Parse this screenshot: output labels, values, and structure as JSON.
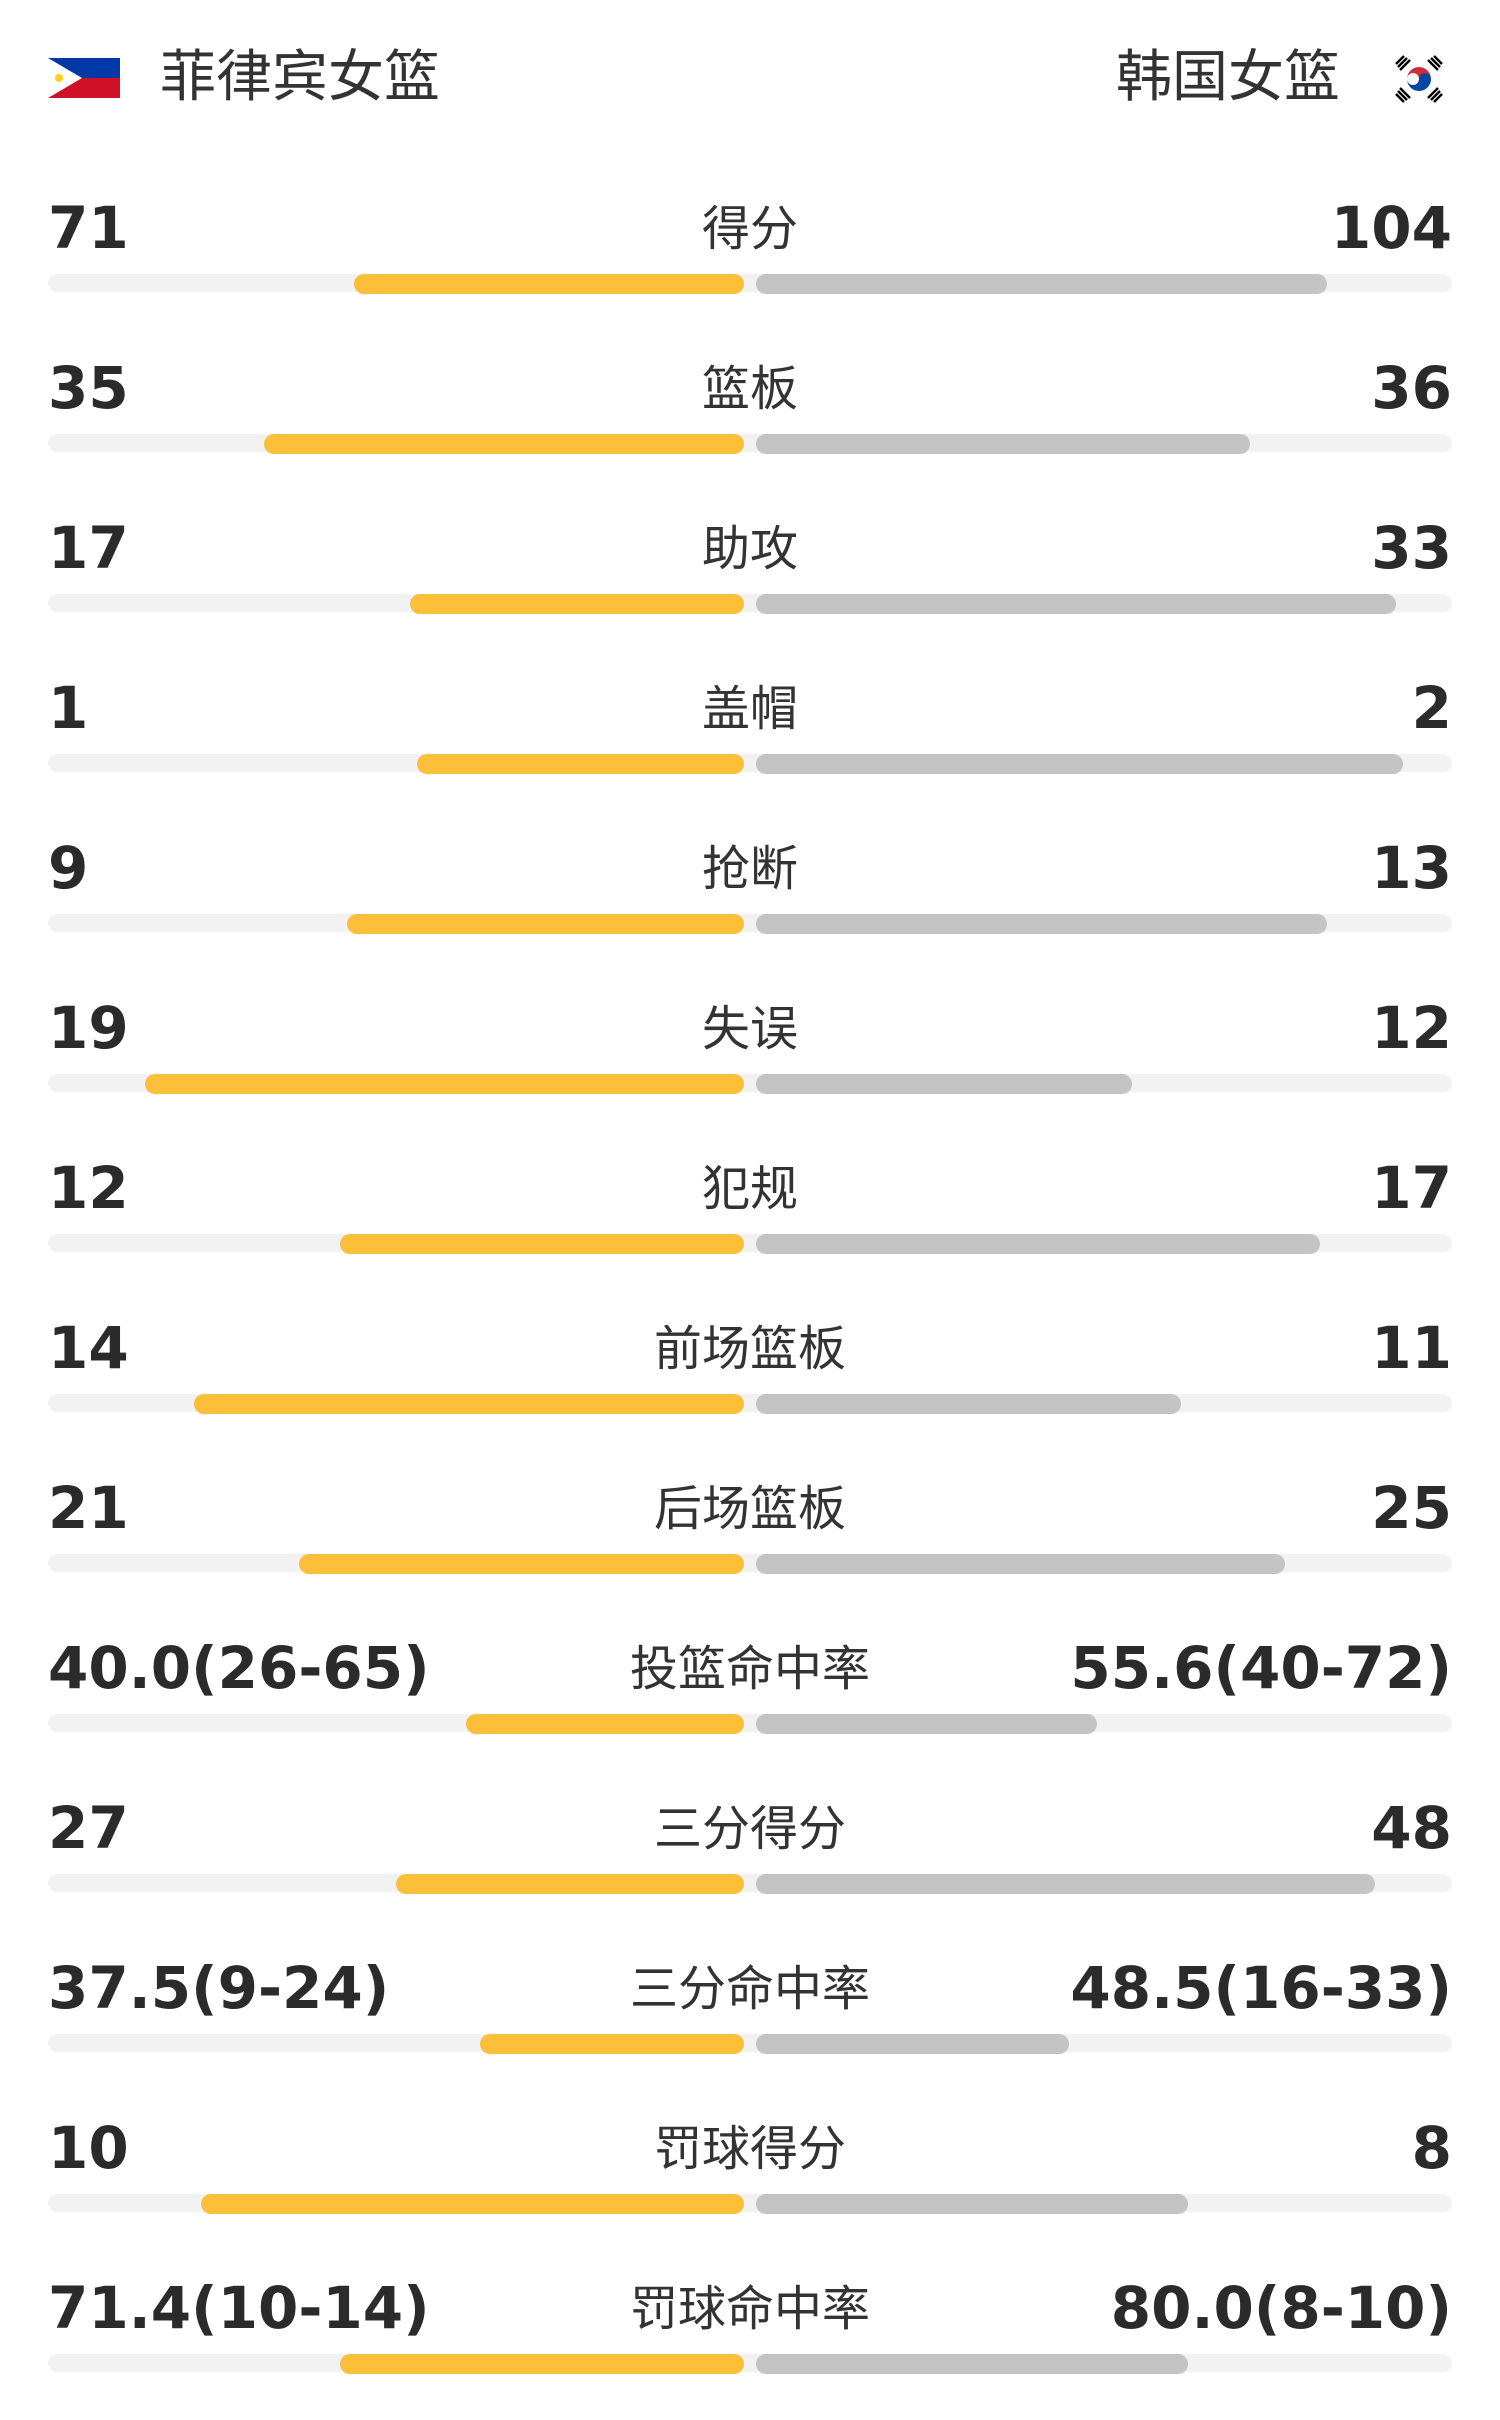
{
  "teams": {
    "home": {
      "name": "菲律宾女篮",
      "flag_icon": "philippines-flag-icon"
    },
    "away": {
      "name": "韩国女篮",
      "flag_icon": "south-korea-flag-icon"
    }
  },
  "colors": {
    "home_bar": "#fbbf3a",
    "away_bar": "#c4c4c4",
    "track": "#f2f2f2"
  },
  "stats": [
    {
      "label": "得分",
      "home": "71",
      "away": "104",
      "home_ratio": 0.56,
      "away_ratio": 0.82
    },
    {
      "label": "篮板",
      "home": "35",
      "away": "36",
      "home_ratio": 0.69,
      "away_ratio": 0.71
    },
    {
      "label": "助攻",
      "home": "17",
      "away": "33",
      "home_ratio": 0.48,
      "away_ratio": 0.92
    },
    {
      "label": "盖帽",
      "home": "1",
      "away": "2",
      "home_ratio": 0.47,
      "away_ratio": 0.93
    },
    {
      "label": "抢断",
      "home": "9",
      "away": "13",
      "home_ratio": 0.57,
      "away_ratio": 0.82
    },
    {
      "label": "失误",
      "home": "19",
      "away": "12",
      "home_ratio": 0.86,
      "away_ratio": 0.54
    },
    {
      "label": "犯规",
      "home": "12",
      "away": "17",
      "home_ratio": 0.58,
      "away_ratio": 0.81
    },
    {
      "label": "前场篮板",
      "home": "14",
      "away": "11",
      "home_ratio": 0.79,
      "away_ratio": 0.61
    },
    {
      "label": "后场篮板",
      "home": "21",
      "away": "25",
      "home_ratio": 0.64,
      "away_ratio": 0.76
    },
    {
      "label": "投篮命中率",
      "home": "40.0(26-65)",
      "away": "55.6(40-72)",
      "home_ratio": 0.4,
      "away_ratio": 0.49
    },
    {
      "label": "三分得分",
      "home": "27",
      "away": "48",
      "home_ratio": 0.5,
      "away_ratio": 0.89
    },
    {
      "label": "三分命中率",
      "home": "37.5(9-24)",
      "away": "48.5(16-33)",
      "home_ratio": 0.38,
      "away_ratio": 0.45
    },
    {
      "label": "罚球得分",
      "home": "10",
      "away": "8",
      "home_ratio": 0.78,
      "away_ratio": 0.62
    },
    {
      "label": "罚球命中率",
      "home": "71.4(10-14)",
      "away": "80.0(8-10)",
      "home_ratio": 0.58,
      "away_ratio": 0.62
    }
  ]
}
